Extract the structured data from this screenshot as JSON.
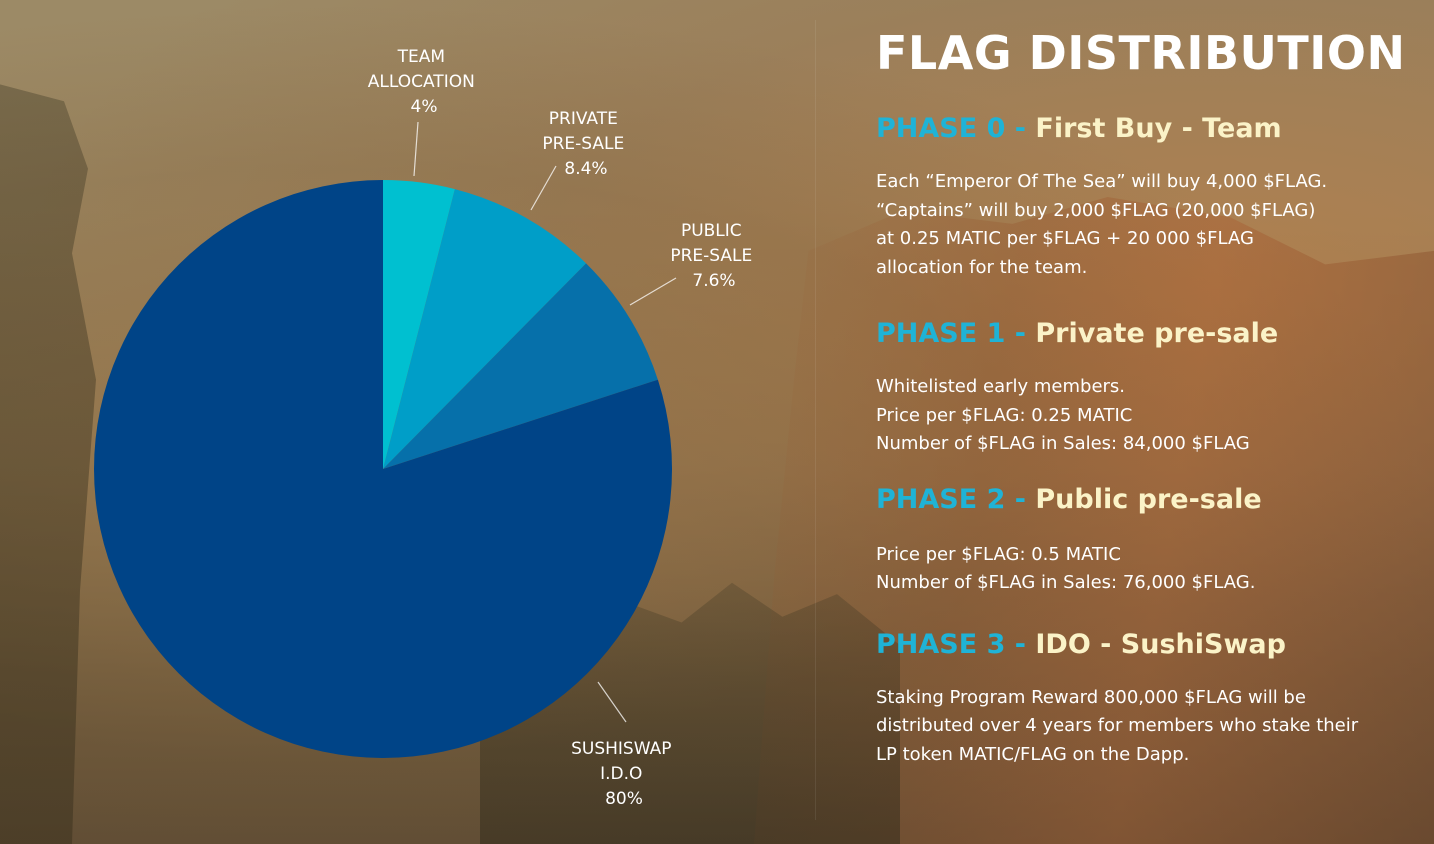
{
  "title": "FLAG DISTRIBUTION",
  "colors": {
    "team": "#00c0d0",
    "private": "#009ec8",
    "public": "#0670aa",
    "sushiswap": "#004487",
    "phase_id": "#1fb3d6",
    "phase_name": "#fbf3c8"
  },
  "chart_data": {
    "type": "pie",
    "slices": [
      {
        "key": "team",
        "label_lines": [
          "TEAM",
          "ALLOCATION"
        ],
        "percent_label": "4%",
        "value": 4
      },
      {
        "key": "private",
        "label_lines": [
          "PRIVATE",
          "PRE-SALE"
        ],
        "percent_label": "8.4%",
        "value": 8.4
      },
      {
        "key": "public",
        "label_lines": [
          "PUBLIC",
          "PRE-SALE"
        ],
        "percent_label": "7.6%",
        "value": 7.6
      },
      {
        "key": "sushiswap",
        "label_lines": [
          "SUSHISWAP",
          "I.D.O"
        ],
        "percent_label": "80%",
        "value": 80
      }
    ]
  },
  "phases": [
    {
      "id": "PHASE 0 - ",
      "name": "First Buy - Team",
      "lines": [
        "Each “Emperor Of The Sea” will buy 4,000 $FLAG.",
        "“Captains” will buy 2,000 $FLAG (20,000 $FLAG)",
        "at 0.25 MATIC per $FLAG + 20 000 $FLAG",
        "allocation for the team."
      ]
    },
    {
      "id": "PHASE 1 - ",
      "name": "Private pre-sale",
      "lines": [
        "Whitelisted early members.",
        "Price per $FLAG: 0.25 MATIC",
        "Number of $FLAG in Sales: 84,000 $FLAG"
      ]
    },
    {
      "id": "PHASE 2 - ",
      "name": "Public pre-sale",
      "lines": [
        "Price per $FLAG: 0.5 MATIC",
        "Number of $FLAG in Sales: 76,000 $FLAG."
      ]
    },
    {
      "id": "PHASE 3 - ",
      "name": "IDO - SushiSwap",
      "lines": [
        "Staking Program Reward 800,000 $FLAG will be",
        "distributed over 4 years for members who stake their",
        "LP token MATIC/FLAG on the Dapp."
      ]
    }
  ]
}
